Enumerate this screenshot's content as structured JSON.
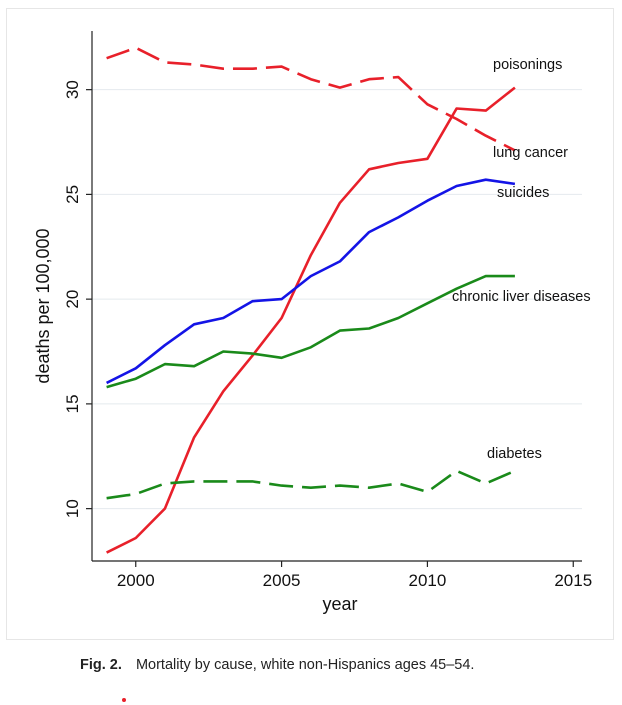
{
  "caption": {
    "fig_label": "Fig. 2.",
    "text": "Mortality by cause, white non-Hispanics ages 45–54."
  },
  "chart_data": {
    "type": "line",
    "title": "",
    "xlabel": "year",
    "ylabel": "deaths per 100,000",
    "xlim": [
      1998.5,
      2015.3
    ],
    "ylim": [
      7.5,
      32.8
    ],
    "xticks": [
      2000,
      2005,
      2010,
      2015
    ],
    "yticks": [
      10,
      15,
      20,
      25,
      30
    ],
    "grid": "horizontal",
    "x": [
      1999,
      2000,
      2001,
      2002,
      2003,
      2004,
      2005,
      2006,
      2007,
      2008,
      2009,
      2010,
      2011,
      2012,
      2013
    ],
    "series": [
      {
        "name": "poisonings",
        "color": "#e8202a",
        "dash": "solid",
        "values": [
          7.9,
          8.6,
          10.0,
          13.4,
          15.6,
          17.3,
          19.1,
          22.1,
          24.6,
          26.2,
          26.5,
          26.7,
          29.1,
          29.0,
          30.1
        ]
      },
      {
        "name": "lung cancer",
        "color": "#e8202a",
        "dash": "dashed",
        "values": [
          31.5,
          32.0,
          31.3,
          31.2,
          31.0,
          31.0,
          31.1,
          30.5,
          30.1,
          30.5,
          30.6,
          29.3,
          28.6,
          27.8,
          27.1
        ]
      },
      {
        "name": "suicides",
        "color": "#1414e6",
        "dash": "solid",
        "values": [
          16.0,
          16.7,
          17.8,
          18.8,
          19.1,
          19.9,
          20.0,
          21.1,
          21.8,
          23.2,
          23.9,
          24.7,
          25.4,
          25.7,
          25.5
        ]
      },
      {
        "name": "chronic liver diseases",
        "color": "#1a8a1a",
        "dash": "solid",
        "values": [
          15.8,
          16.2,
          16.9,
          16.8,
          17.5,
          17.4,
          17.2,
          17.7,
          18.5,
          18.6,
          19.1,
          19.8,
          20.5,
          21.1,
          21.1
        ]
      },
      {
        "name": "diabetes",
        "color": "#1a8a1a",
        "dash": "dashed",
        "values": [
          10.5,
          10.7,
          11.2,
          11.3,
          11.3,
          11.3,
          11.1,
          11.0,
          11.1,
          11.0,
          11.2,
          10.8,
          11.8,
          11.2,
          11.8
        ]
      }
    ]
  }
}
